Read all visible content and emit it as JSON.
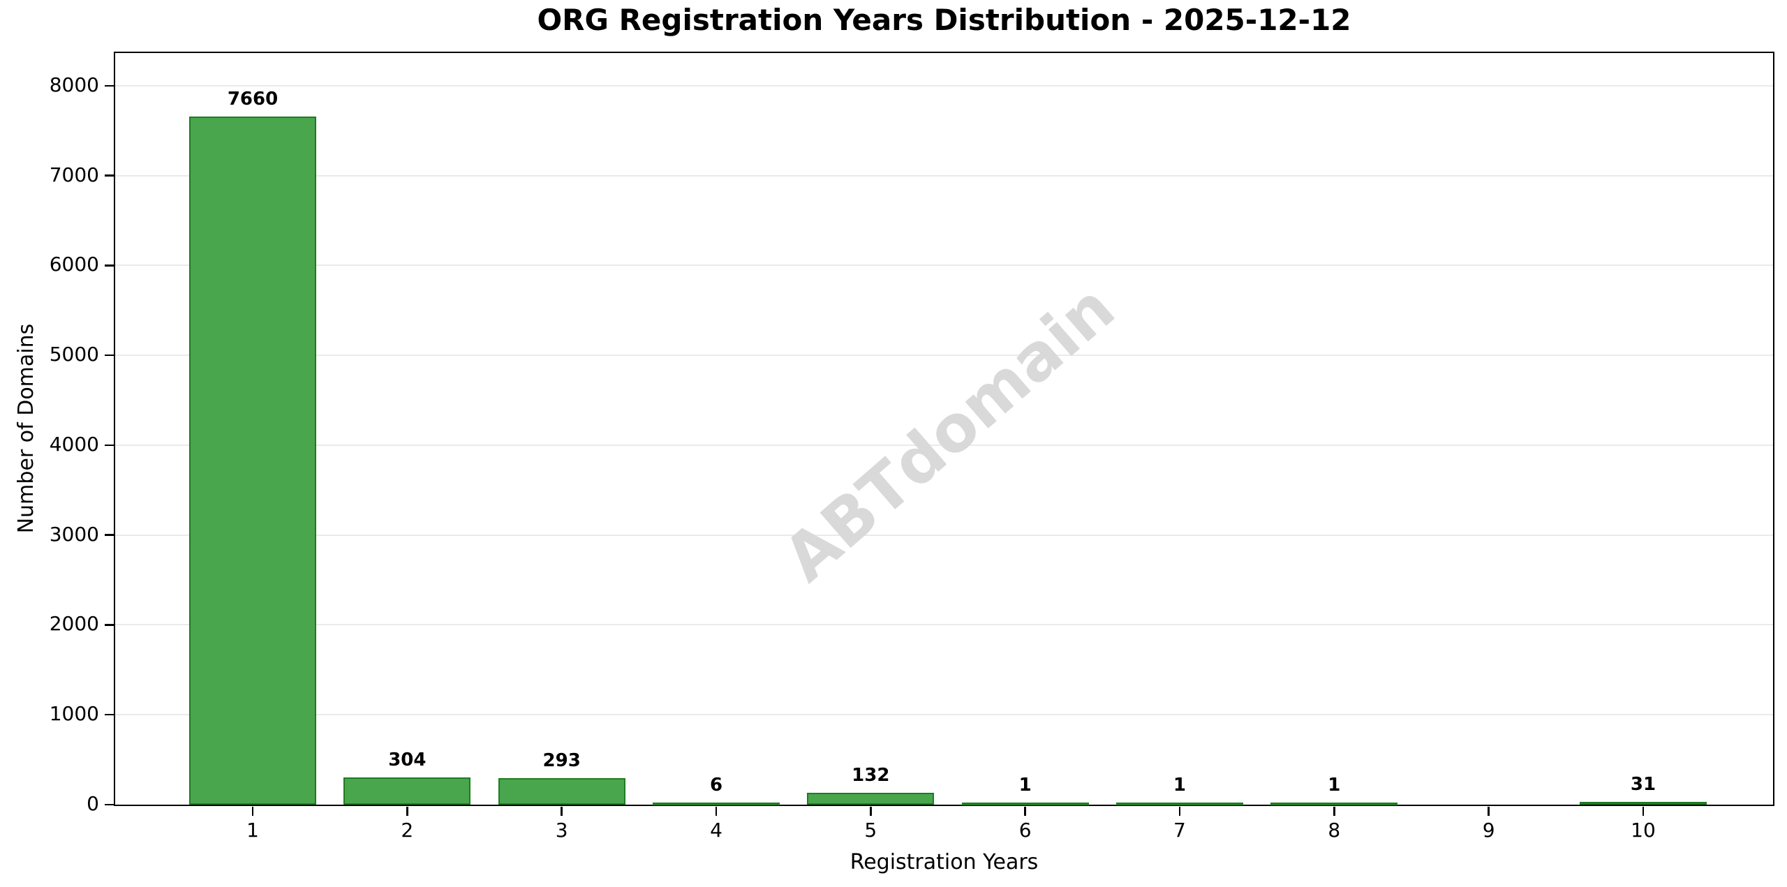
{
  "title": "ORG Registration Years Distribution - 2025-12-12",
  "watermark_text": "ABTdomain",
  "colors": {
    "bar_fill": "#4aa64d",
    "bar_edge": "#1e7c21",
    "grid": "#eaeaea",
    "axis": "#000000",
    "watermark": "#d9d9d9",
    "background": "#ffffff"
  },
  "chart_data": {
    "type": "bar",
    "title": "ORG Registration Years Distribution - 2025-12-12",
    "xlabel": "Registration Years",
    "ylabel": "Number of Domains",
    "categories": [
      "1",
      "2",
      "3",
      "4",
      "5",
      "6",
      "7",
      "8",
      "9",
      "10"
    ],
    "values": [
      7660,
      304,
      293,
      6,
      132,
      1,
      1,
      1,
      0,
      31
    ],
    "bar_labels": [
      "7660",
      "304",
      "293",
      "6",
      "132",
      "1",
      "1",
      "1",
      "",
      "31"
    ],
    "ylim": [
      0,
      8365
    ],
    "yticks": [
      0,
      1000,
      2000,
      3000,
      4000,
      5000,
      6000,
      7000,
      8000
    ],
    "grid": "horizontal-only",
    "legend": "none",
    "watermark": "ABTdomain"
  }
}
